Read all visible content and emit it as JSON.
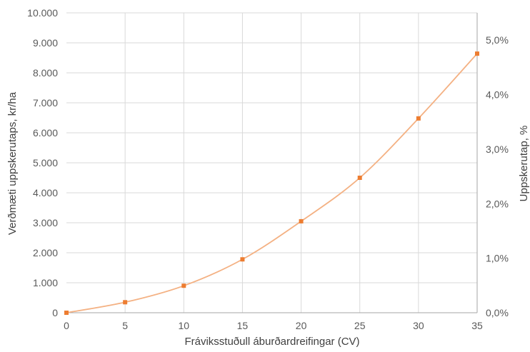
{
  "chart_data": {
    "type": "line",
    "xlabel": "Fráviksstuðull áburðardreifingar (CV)",
    "ylabel": "Verðmæti uppskerutaps, kr/ha",
    "y2label": "Uppskerutap, %",
    "x": [
      0,
      5,
      10,
      15,
      20,
      25,
      30,
      35
    ],
    "series": [
      {
        "values": [
          0,
          350,
          900,
          1780,
          3050,
          4500,
          6480,
          8640
        ]
      }
    ],
    "xlim": [
      0,
      35
    ],
    "ylim": [
      0,
      10000
    ],
    "y2lim": [
      0,
      5.5
    ],
    "x_ticks": [
      "0",
      "5",
      "10",
      "15",
      "20",
      "25",
      "30",
      "35"
    ],
    "y_ticks": [
      "0",
      "1.000",
      "2.000",
      "3.000",
      "4.000",
      "5.000",
      "6.000",
      "7.000",
      "8.000",
      "9.000",
      "10.000"
    ],
    "y_tick_values": [
      0,
      1000,
      2000,
      3000,
      4000,
      5000,
      6000,
      7000,
      8000,
      9000,
      10000
    ],
    "y2_ticks": [
      "0,0%",
      "1,0%",
      "2,0%",
      "3,0%",
      "4,0%",
      "5,0%"
    ],
    "y2_tick_values": [
      0,
      1,
      2,
      3,
      4,
      5
    ],
    "grid": true,
    "line_color": "#F4B183",
    "marker_color": "#ED7D31",
    "grid_color": "#D9D9D9",
    "axis_color": "#A6A6A6"
  }
}
